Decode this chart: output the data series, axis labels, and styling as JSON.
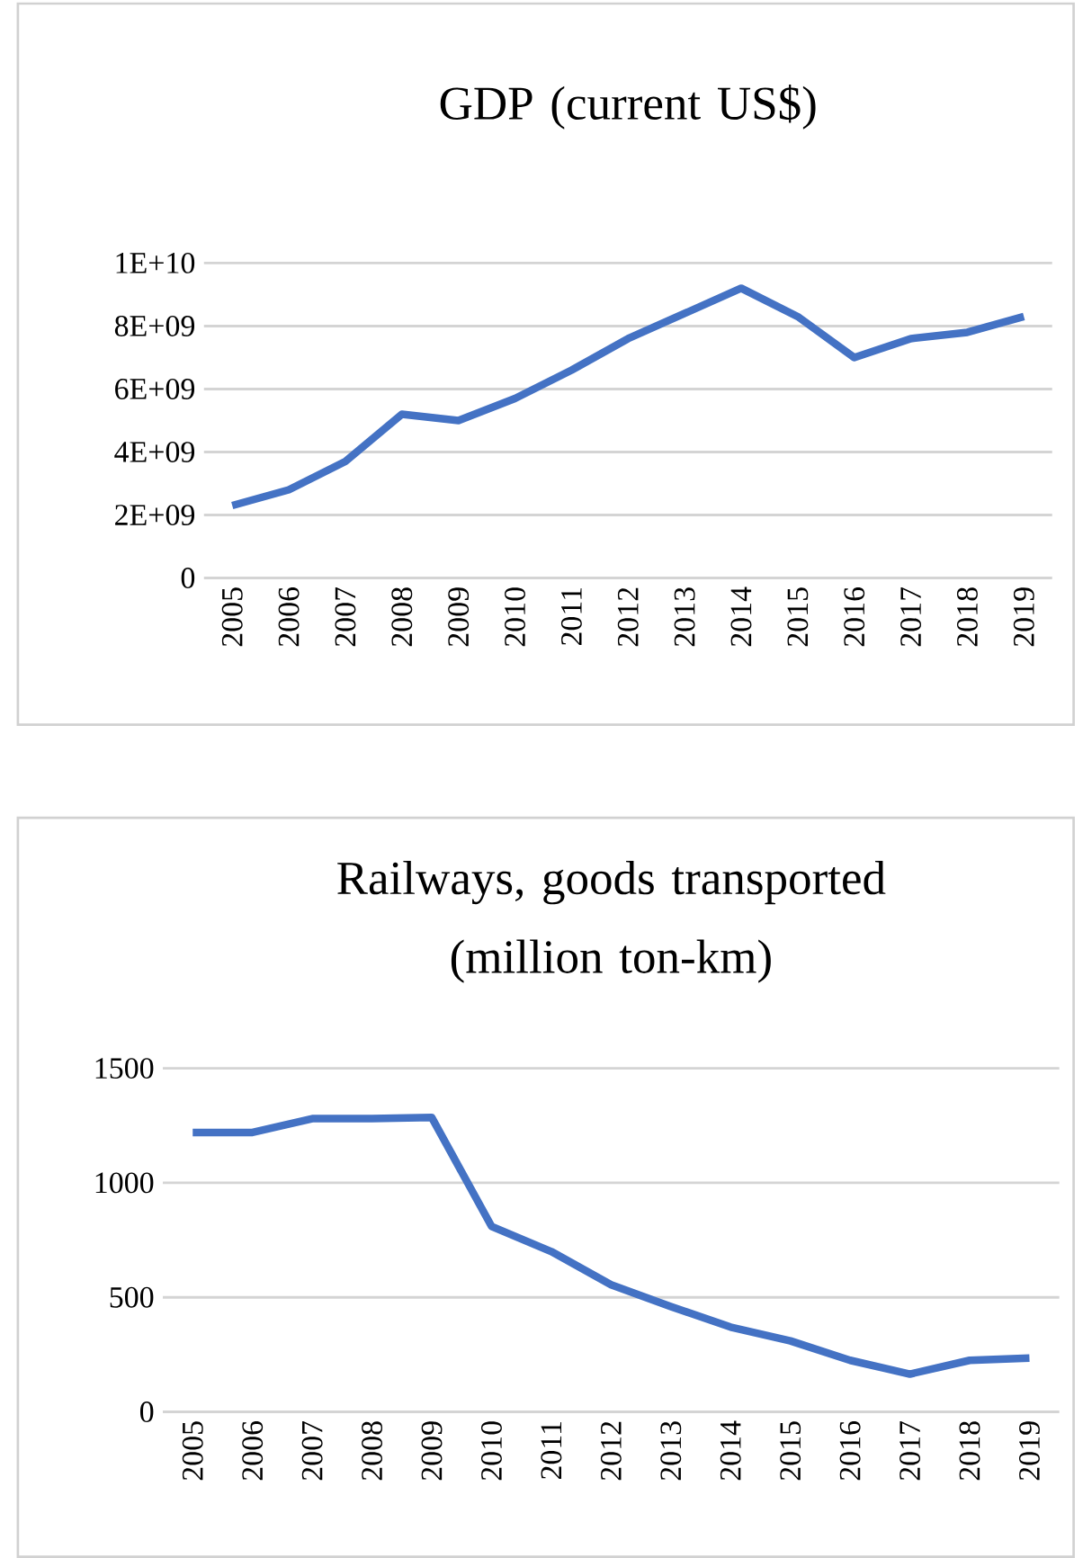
{
  "chart_data": [
    {
      "type": "line",
      "title": "GDP (current US$)",
      "categories": [
        "2005",
        "2006",
        "2007",
        "2008",
        "2009",
        "2010",
        "2011",
        "2012",
        "2013",
        "2014",
        "2015",
        "2016",
        "2017",
        "2018",
        "2019"
      ],
      "series": [
        {
          "color": "#4472c4",
          "values": [
            2300000000,
            2800000000,
            3700000000,
            5200000000,
            5000000000,
            5700000000,
            6600000000,
            7600000000,
            8400000000,
            9200000000,
            8300000000,
            7000000000,
            7600000000,
            7800000000,
            8300000000
          ]
        }
      ],
      "ylim": [
        0,
        10000000000
      ],
      "yticks": [
        0,
        {
          "value": 2000000000,
          "label": "2E+09"
        },
        {
          "value": 4000000000,
          "label": "4E+09"
        },
        {
          "value": 6000000000,
          "label": "6E+09"
        },
        {
          "value": 8000000000,
          "label": "8E+09"
        },
        {
          "value": 10000000000,
          "label": "1E+10"
        }
      ],
      "grid": "y"
    },
    {
      "type": "line",
      "title": "Railways, goods transported (million ton-km)",
      "categories": [
        "2005",
        "2006",
        "2007",
        "2008",
        "2009",
        "2010",
        "2011",
        "2012",
        "2013",
        "2014",
        "2015",
        "2016",
        "2017",
        "2018",
        "2019"
      ],
      "series": [
        {
          "color": "#4472c4",
          "values": [
            1220,
            1220,
            1280,
            1280,
            1285,
            810,
            700,
            555,
            460,
            370,
            310,
            225,
            165,
            225,
            235
          ]
        }
      ],
      "ylim": [
        0,
        1500
      ],
      "yticks": [
        0,
        500,
        1000,
        1500
      ],
      "grid": "y"
    }
  ]
}
